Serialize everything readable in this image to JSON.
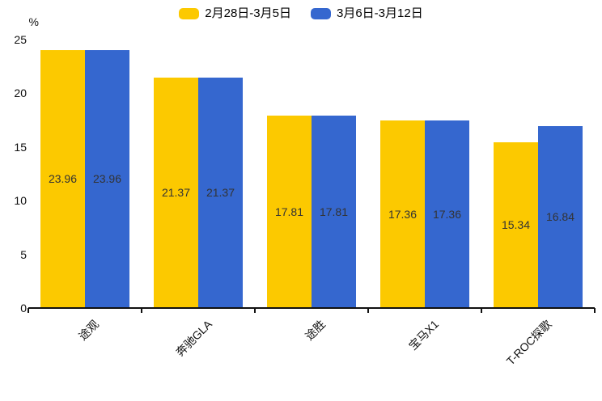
{
  "chart_data": {
    "type": "bar",
    "title": "",
    "categories": [
      "途观",
      "奔驰GLA",
      "途胜",
      "宝马X1",
      "T-ROC探歌"
    ],
    "series": [
      {
        "name": "2月28日-3月5日",
        "color": "#FCC900",
        "values": [
          23.96,
          21.37,
          17.81,
          17.36,
          15.34
        ]
      },
      {
        "name": "3月6日-3月12日",
        "color": "#3567CF",
        "values": [
          23.96,
          21.37,
          17.81,
          17.36,
          16.84
        ]
      }
    ],
    "xlabel": "",
    "ylabel": "%",
    "ylim": [
      0,
      25
    ],
    "yticks": [
      0,
      5,
      10,
      15,
      20,
      25
    ],
    "grid": false,
    "legend_position": "top-center",
    "value_labels": "inside-center",
    "value_label_color": "#333333",
    "value_label_format": "2-decimals",
    "x_label_rotation_deg": 45
  }
}
